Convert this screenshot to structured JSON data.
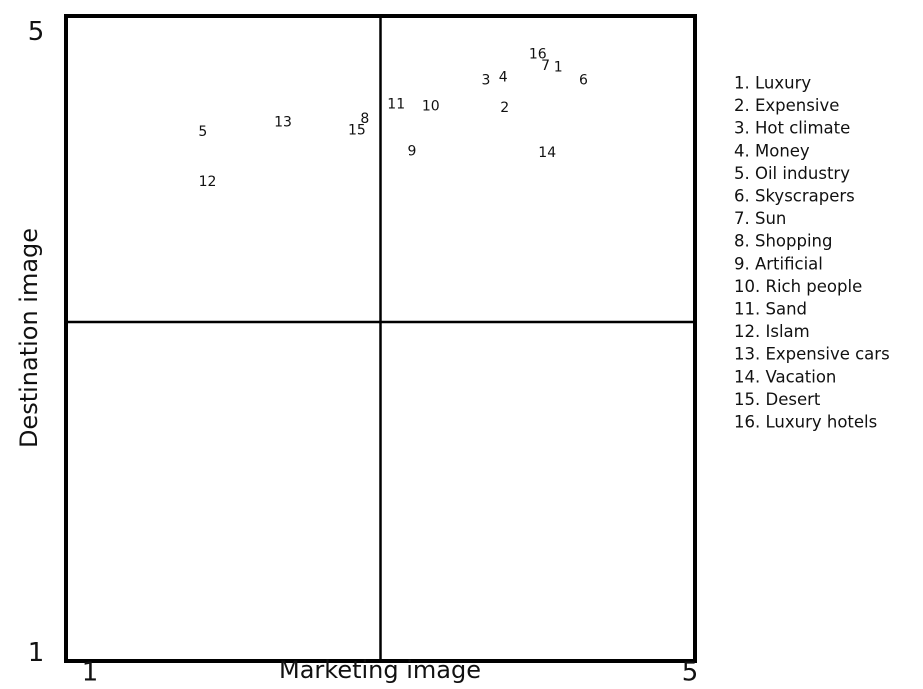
{
  "chart_data": {
    "type": "scatter",
    "xlabel": "Marketing image",
    "ylabel": "Destination image",
    "xlim": [
      1,
      5
    ],
    "ylim": [
      1,
      5
    ],
    "x_ticks": [
      "1",
      "5"
    ],
    "y_ticks": [
      "1",
      "5"
    ],
    "quadrant_lines": {
      "x": 3,
      "y": 3
    },
    "grid": false,
    "legend_position": "right",
    "points": [
      {
        "label": "1",
        "x": 4.13,
        "y": 4.68
      },
      {
        "label": "2",
        "x": 3.79,
        "y": 4.43
      },
      {
        "label": "3",
        "x": 3.67,
        "y": 4.6
      },
      {
        "label": "4",
        "x": 3.78,
        "y": 4.62
      },
      {
        "label": "5",
        "x": 1.87,
        "y": 4.28
      },
      {
        "label": "6",
        "x": 4.29,
        "y": 4.6
      },
      {
        "label": "7",
        "x": 4.05,
        "y": 4.69
      },
      {
        "label": "8",
        "x": 2.9,
        "y": 4.36
      },
      {
        "label": "9",
        "x": 3.2,
        "y": 4.16
      },
      {
        "label": "10",
        "x": 3.32,
        "y": 4.44
      },
      {
        "label": "11",
        "x": 3.1,
        "y": 4.45
      },
      {
        "label": "12",
        "x": 1.9,
        "y": 3.97
      },
      {
        "label": "13",
        "x": 2.38,
        "y": 4.34
      },
      {
        "label": "14",
        "x": 4.06,
        "y": 4.15
      },
      {
        "label": "15",
        "x": 2.85,
        "y": 4.29
      },
      {
        "label": "16",
        "x": 4.0,
        "y": 4.76
      }
    ],
    "legend": [
      "1. Luxury",
      "2. Expensive",
      "3. Hot climate",
      "4. Money",
      "5. Oil industry",
      "6. Skyscrapers",
      "7. Sun",
      "8. Shopping",
      "9. Artificial",
      "10. Rich people",
      "11. Sand",
      "12. Islam",
      "13. Expensive cars",
      "14. Vacation",
      "15. Desert",
      "16. Luxury hotels"
    ]
  }
}
